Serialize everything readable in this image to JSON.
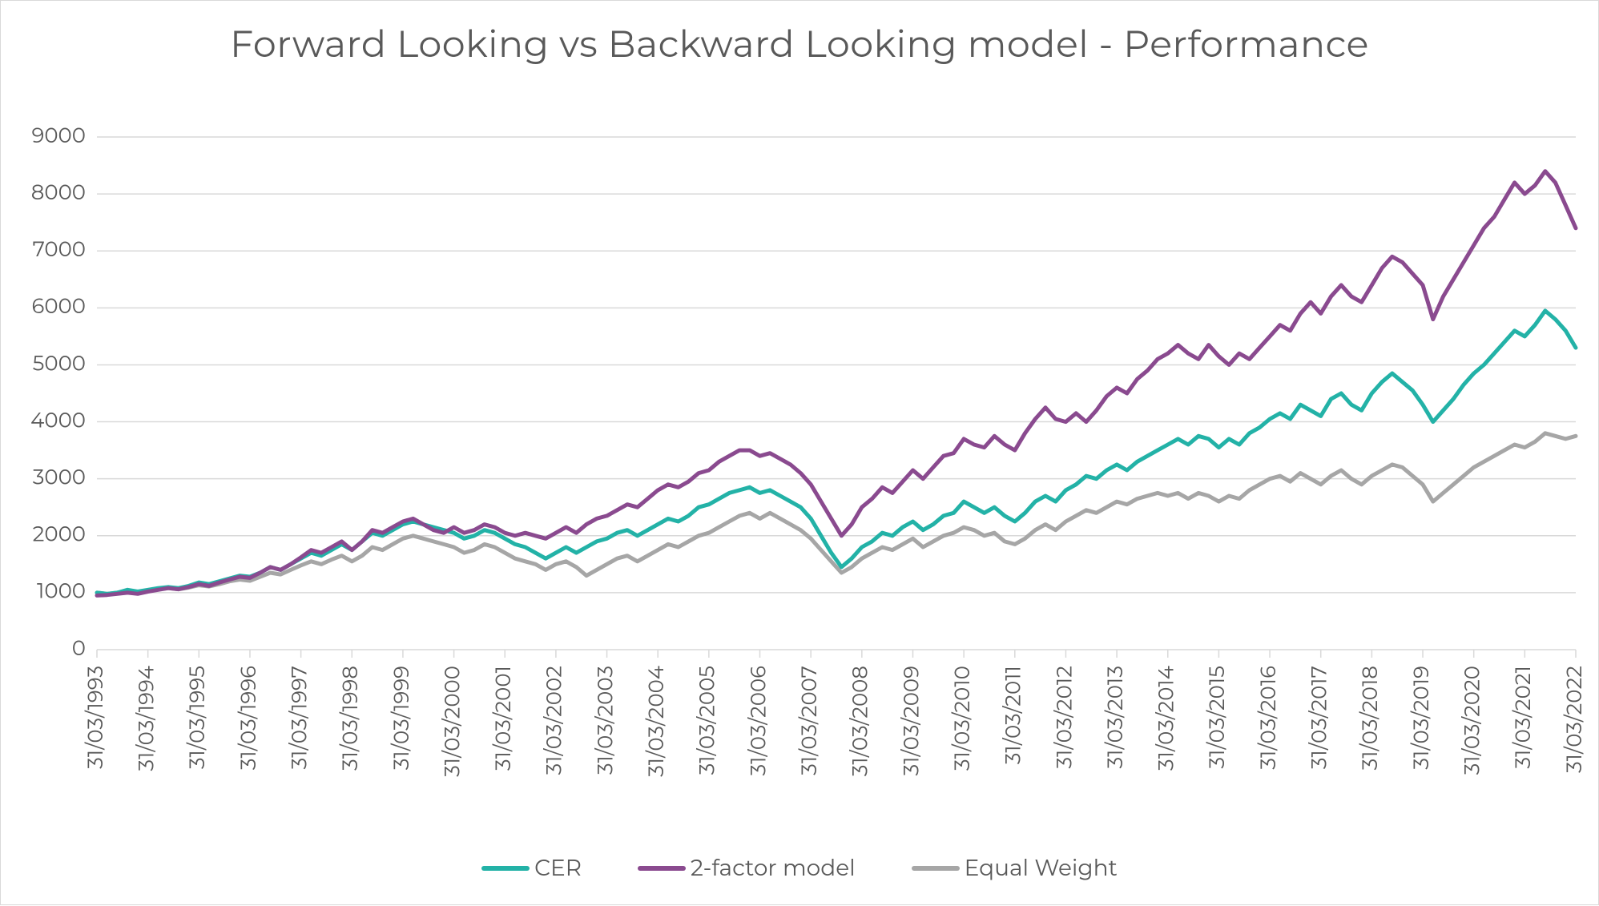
{
  "chart": {
    "type": "line",
    "title": "Forward Looking vs Backward Looking model - Performance",
    "title_fontsize": 46,
    "title_color": "#595959",
    "background_color": "#ffffff",
    "border_color": "#d9d9d9",
    "grid_color": "#d9d9d9",
    "axis_text_color": "#595959",
    "axis_fontsize": 26,
    "xlabel_fontsize": 26,
    "legend_fontsize": 28,
    "line_width": 5,
    "ylim": [
      0,
      9000
    ],
    "ytick_step": 1000,
    "yticks": [
      0,
      1000,
      2000,
      3000,
      4000,
      5000,
      6000,
      7000,
      8000,
      9000
    ],
    "x_years": [
      1993,
      1994,
      1995,
      1996,
      1997,
      1998,
      1999,
      2000,
      2001,
      2002,
      2003,
      2004,
      2005,
      2006,
      2007,
      2008,
      2009,
      2010,
      2011,
      2012,
      2013,
      2014,
      2015,
      2016,
      2017,
      2018,
      2019,
      2020,
      2021,
      2022
    ],
    "x_label_prefix": "31/03/",
    "x_rotation_deg": -90,
    "series": [
      {
        "name": "CER",
        "color": "#23b2a7",
        "values": [
          1000,
          980,
          1000,
          1050,
          1020,
          1050,
          1080,
          1100,
          1080,
          1120,
          1180,
          1150,
          1200,
          1250,
          1300,
          1280,
          1350,
          1450,
          1400,
          1500,
          1600,
          1700,
          1650,
          1750,
          1850,
          1750,
          1900,
          2050,
          2000,
          2100,
          2200,
          2250,
          2200,
          2150,
          2100,
          2050,
          1950,
          2000,
          2100,
          2050,
          1950,
          1850,
          1800,
          1700,
          1600,
          1700,
          1800,
          1700,
          1800,
          1900,
          1950,
          2050,
          2100,
          2000,
          2100,
          2200,
          2300,
          2250,
          2350,
          2500,
          2550,
          2650,
          2750,
          2800,
          2850,
          2750,
          2800,
          2700,
          2600,
          2500,
          2300,
          2000,
          1700,
          1450,
          1600,
          1800,
          1900,
          2050,
          2000,
          2150,
          2250,
          2100,
          2200,
          2350,
          2400,
          2600,
          2500,
          2400,
          2500,
          2350,
          2250,
          2400,
          2600,
          2700,
          2600,
          2800,
          2900,
          3050,
          3000,
          3150,
          3250,
          3150,
          3300,
          3400,
          3500,
          3600,
          3700,
          3600,
          3750,
          3700,
          3550,
          3700,
          3600,
          3800,
          3900,
          4050,
          4150,
          4050,
          4300,
          4200,
          4100,
          4400,
          4500,
          4300,
          4200,
          4500,
          4700,
          4850,
          4700,
          4550,
          4300,
          4000,
          4200,
          4400,
          4650,
          4850,
          5000,
          5200,
          5400,
          5600,
          5500,
          5700,
          5950,
          5800,
          5600,
          5300
        ]
      },
      {
        "name": "2-factor model",
        "color": "#8a4a8f",
        "values": [
          950,
          960,
          980,
          1000,
          980,
          1020,
          1050,
          1080,
          1060,
          1100,
          1150,
          1120,
          1180,
          1230,
          1280,
          1260,
          1350,
          1450,
          1400,
          1500,
          1620,
          1750,
          1700,
          1800,
          1900,
          1750,
          1900,
          2100,
          2050,
          2150,
          2250,
          2300,
          2200,
          2100,
          2050,
          2150,
          2050,
          2100,
          2200,
          2150,
          2050,
          2000,
          2050,
          2000,
          1950,
          2050,
          2150,
          2050,
          2200,
          2300,
          2350,
          2450,
          2550,
          2500,
          2650,
          2800,
          2900,
          2850,
          2950,
          3100,
          3150,
          3300,
          3400,
          3500,
          3500,
          3400,
          3450,
          3350,
          3250,
          3100,
          2900,
          2600,
          2300,
          2000,
          2200,
          2500,
          2650,
          2850,
          2750,
          2950,
          3150,
          3000,
          3200,
          3400,
          3450,
          3700,
          3600,
          3550,
          3750,
          3600,
          3500,
          3800,
          4050,
          4250,
          4050,
          4000,
          4150,
          4000,
          4200,
          4450,
          4600,
          4500,
          4750,
          4900,
          5100,
          5200,
          5350,
          5200,
          5100,
          5350,
          5150,
          5000,
          5200,
          5100,
          5300,
          5500,
          5700,
          5600,
          5900,
          6100,
          5900,
          6200,
          6400,
          6200,
          6100,
          6400,
          6700,
          6900,
          6800,
          6600,
          6400,
          5800,
          6200,
          6500,
          6800,
          7100,
          7400,
          7600,
          7900,
          8200,
          8000,
          8150,
          8400,
          8200,
          7800,
          7400
        ]
      },
      {
        "name": "Equal Weight",
        "color": "#a6a6a6",
        "values": [
          1000,
          980,
          1000,
          1030,
          1010,
          1040,
          1060,
          1080,
          1060,
          1090,
          1130,
          1110,
          1150,
          1200,
          1230,
          1210,
          1280,
          1350,
          1320,
          1400,
          1480,
          1550,
          1500,
          1580,
          1650,
          1550,
          1650,
          1800,
          1750,
          1850,
          1950,
          2000,
          1950,
          1900,
          1850,
          1800,
          1700,
          1750,
          1850,
          1800,
          1700,
          1600,
          1550,
          1500,
          1400,
          1500,
          1550,
          1450,
          1300,
          1400,
          1500,
          1600,
          1650,
          1550,
          1650,
          1750,
          1850,
          1800,
          1900,
          2000,
          2050,
          2150,
          2250,
          2350,
          2400,
          2300,
          2400,
          2300,
          2200,
          2100,
          1950,
          1750,
          1550,
          1350,
          1450,
          1600,
          1700,
          1800,
          1750,
          1850,
          1950,
          1800,
          1900,
          2000,
          2050,
          2150,
          2100,
          2000,
          2050,
          1900,
          1850,
          1950,
          2100,
          2200,
          2100,
          2250,
          2350,
          2450,
          2400,
          2500,
          2600,
          2550,
          2650,
          2700,
          2750,
          2700,
          2750,
          2650,
          2750,
          2700,
          2600,
          2700,
          2650,
          2800,
          2900,
          3000,
          3050,
          2950,
          3100,
          3000,
          2900,
          3050,
          3150,
          3000,
          2900,
          3050,
          3150,
          3250,
          3200,
          3050,
          2900,
          2600,
          2750,
          2900,
          3050,
          3200,
          3300,
          3400,
          3500,
          3600,
          3550,
          3650,
          3800,
          3750,
          3700,
          3750
        ]
      }
    ]
  }
}
